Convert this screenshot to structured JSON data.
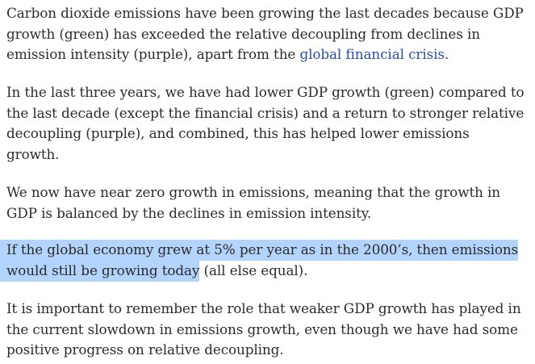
{
  "article": {
    "paragraphs": [
      {
        "lines": [
          "Carbon dioxide emissions have been growing the last decades because GDP",
          "growth (green) has exceeded the relative decoupling from declines in",
          "emission intensity (purple), apart from the "
        ],
        "link_text": "global financial crisis",
        "after_link": "."
      },
      {
        "lines": [
          "In the last three years, we have had lower GDP growth (green) compared to",
          "the last decade (except the financial crisis) and a return to stronger relative",
          "decoupling (purple), and combined, this has helped lower emissions",
          "growth."
        ]
      },
      {
        "lines": [
          "We now have near zero growth in emissions, meaning that the growth in",
          "GDP is balanced by the declines in emission intensity."
        ]
      },
      {
        "highlighted_line_1": "If the global economy grew at 5% per year as in the 2000’s, then emissions",
        "highlighted_line_2": "would still be growing today",
        "rest_line_2": " (all else equal)."
      },
      {
        "lines": [
          "It is important to remember the role that weaker GDP growth has played in",
          "the current slowdown in emissions growth, even though we have had some",
          "positive progress on relative decoupling."
        ]
      }
    ],
    "colors": {
      "text": "#2b2b2b",
      "link": "#2a4fa8",
      "selection_highlight": "#b3d4fc"
    }
  }
}
